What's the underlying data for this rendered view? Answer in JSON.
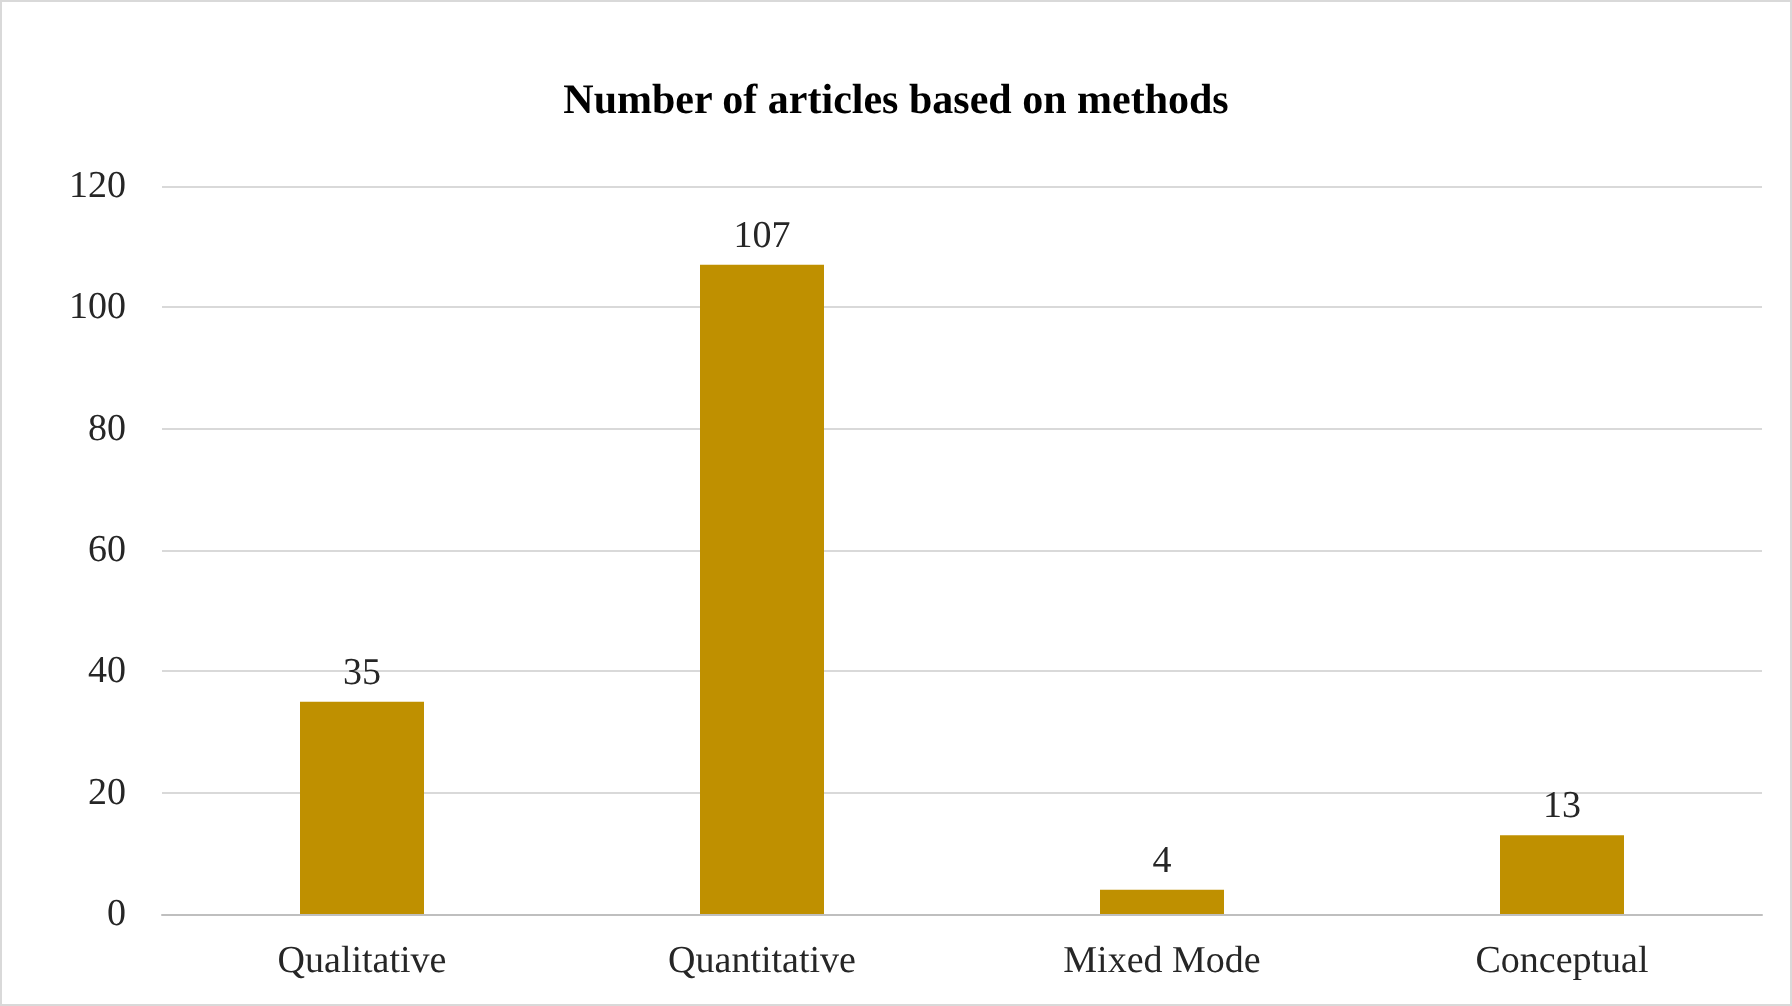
{
  "chart_data": {
    "type": "bar",
    "title": "Number of articles based on methods",
    "categories": [
      "Qualitative",
      "Quantitative",
      "Mixed Mode",
      "Conceptual"
    ],
    "values": [
      35,
      107,
      4,
      13
    ],
    "color": "#bf9000",
    "ylim": [
      0,
      120
    ],
    "yticks": [
      0,
      20,
      40,
      60,
      80,
      100,
      120
    ],
    "grid": "y",
    "data_labels": true
  }
}
